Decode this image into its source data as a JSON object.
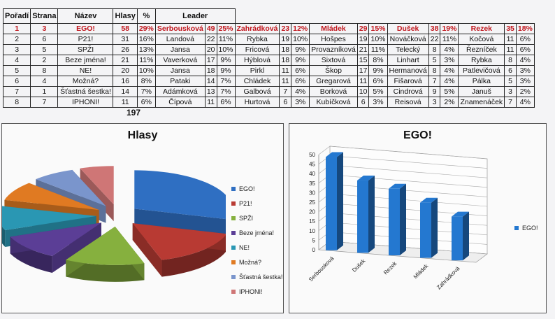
{
  "results_table": {
    "headers": [
      "Pořadí",
      "Strana",
      "Název",
      "Hlasy",
      "%",
      "Leader"
    ],
    "leader_headers": [
      {
        "name": "Serbousková",
        "votes": "49",
        "pct": "25%"
      },
      {
        "name": "Zahrádková",
        "votes": "23",
        "pct": "12%"
      },
      {
        "name": "Mládek",
        "votes": "29",
        "pct": "15%"
      },
      {
        "name": "Dušek",
        "votes": "38",
        "pct": "19%"
      },
      {
        "name": "Rezek",
        "votes": "35",
        "pct": "18%"
      }
    ],
    "rows": [
      {
        "rank": "1",
        "party": "3",
        "name": "EGO!",
        "votes": "58",
        "pct": "29%",
        "leader": "Serbousková",
        "c": [
          [
            "49",
            "25%"
          ],
          [
            "Zahrádková",
            "23",
            "12%"
          ],
          [
            "Mládek",
            "29",
            "15%"
          ],
          [
            "Dušek",
            "38",
            "19%"
          ],
          [
            "Rezek",
            "35",
            "18%"
          ]
        ]
      },
      {
        "rank": "2",
        "party": "6",
        "name": "P21!",
        "votes": "31",
        "pct": "16%",
        "leader": "Landová",
        "c": [
          [
            "22",
            "11%"
          ],
          [
            "Rybka",
            "19",
            "10%"
          ],
          [
            "Hošpes",
            "19",
            "10%"
          ],
          [
            "Nováčková",
            "22",
            "11%"
          ],
          [
            "Kočová",
            "11",
            "6%"
          ]
        ]
      },
      {
        "rank": "3",
        "party": "5",
        "name": "SPŽI",
        "votes": "26",
        "pct": "13%",
        "leader": "Jansa",
        "c": [
          [
            "20",
            "10%"
          ],
          [
            "Fricová",
            "18",
            "9%"
          ],
          [
            "Provazníková",
            "21",
            "11%"
          ],
          [
            "Telecký",
            "8",
            "4%"
          ],
          [
            "Řezníček",
            "11",
            "6%"
          ]
        ]
      },
      {
        "rank": "4",
        "party": "2",
        "name": "Beze jména!",
        "votes": "21",
        "pct": "11%",
        "leader": "Vaverková",
        "c": [
          [
            "17",
            "9%"
          ],
          [
            "Hýblová",
            "18",
            "9%"
          ],
          [
            "Sixtová",
            "15",
            "8%"
          ],
          [
            "Linhart",
            "5",
            "3%"
          ],
          [
            "Rybka",
            "8",
            "4%"
          ]
        ]
      },
      {
        "rank": "5",
        "party": "8",
        "name": "NE!",
        "votes": "20",
        "pct": "10%",
        "leader": "Jansa",
        "c": [
          [
            "18",
            "9%"
          ],
          [
            "Pirkl",
            "11",
            "6%"
          ],
          [
            "Škop",
            "17",
            "9%"
          ],
          [
            "Hermanová",
            "8",
            "4%"
          ],
          [
            "Patlevičová",
            "6",
            "3%"
          ]
        ]
      },
      {
        "rank": "6",
        "party": "4",
        "name": "Možná?",
        "votes": "16",
        "pct": "8%",
        "leader": "Pataki",
        "c": [
          [
            "14",
            "7%"
          ],
          [
            "Chládek",
            "11",
            "6%"
          ],
          [
            "Gregarová",
            "11",
            "6%"
          ],
          [
            "Fišarová",
            "7",
            "4%"
          ],
          [
            "Pálka",
            "5",
            "3%"
          ]
        ]
      },
      {
        "rank": "7",
        "party": "1",
        "name": "Šťastná šestka!",
        "votes": "14",
        "pct": "7%",
        "leader": "Adámková",
        "c": [
          [
            "13",
            "7%"
          ],
          [
            "Galbová",
            "7",
            "4%"
          ],
          [
            "Borková",
            "10",
            "5%"
          ],
          [
            "Cindrová",
            "9",
            "5%"
          ],
          [
            "Januš",
            "3",
            "2%"
          ]
        ]
      },
      {
        "rank": "8",
        "party": "7",
        "name": "IPHONI!",
        "votes": "11",
        "pct": "6%",
        "leader": "Čípová",
        "c": [
          [
            "11",
            "6%"
          ],
          [
            "Hurtová",
            "6",
            "3%"
          ],
          [
            "Kubíčková",
            "6",
            "3%"
          ],
          [
            "Reisová",
            "3",
            "2%"
          ],
          [
            "Znamenáček",
            "7",
            "4%"
          ]
        ]
      }
    ],
    "total_votes": "197"
  },
  "chart_data": [
    {
      "type": "pie",
      "title": "Hlasy",
      "categories": [
        "EGO!",
        "P21!",
        "SPŽI",
        "Beze jména!",
        "NE!",
        "Možná?",
        "Šťastná šestka!",
        "IPHONI!"
      ],
      "values": [
        58,
        31,
        26,
        21,
        20,
        16,
        14,
        11
      ],
      "colors": [
        "#2f6fc2",
        "#b83a33",
        "#86b03e",
        "#5b3e96",
        "#2a97b3",
        "#e07a22",
        "#7a95cc",
        "#cf7676"
      ],
      "legend": "right",
      "style": "3D exploded"
    },
    {
      "type": "bar",
      "title": "EGO!",
      "categories": [
        "Serbousková",
        "Dušek",
        "Rezek",
        "Mládek",
        "Zahrádková"
      ],
      "series": [
        {
          "name": "EGO!",
          "values": [
            49,
            38,
            35,
            29,
            23
          ]
        }
      ],
      "ylim": [
        0,
        50
      ],
      "yticks": [
        0,
        5,
        10,
        15,
        20,
        25,
        30,
        35,
        40,
        45,
        50
      ],
      "color": "#2478d0",
      "legend": "right",
      "grid": true,
      "style": "3D"
    }
  ]
}
